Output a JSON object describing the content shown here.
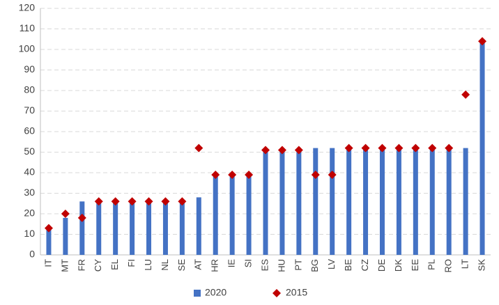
{
  "chart_data": {
    "type": "bar",
    "categories": [
      "IT",
      "MT",
      "FR",
      "CY",
      "EL",
      "FI",
      "LU",
      "NL",
      "SE",
      "AT",
      "HR",
      "IE",
      "SI",
      "ES",
      "HU",
      "PT",
      "BG",
      "LV",
      "BE",
      "CZ",
      "DE",
      "DK",
      "EE",
      "PL",
      "RO",
      "LT",
      "SK"
    ],
    "series": [
      {
        "name": "2020",
        "kind": "bar",
        "color": "#4472C4",
        "values": [
          13,
          18,
          26,
          26,
          26,
          26,
          26,
          26,
          26,
          28,
          39,
          39,
          39,
          51,
          51,
          51,
          52,
          52,
          52,
          52,
          52,
          52,
          52,
          52,
          52,
          52,
          104
        ]
      },
      {
        "name": "2015",
        "kind": "marker",
        "marker": "diamond",
        "color": "#C00000",
        "values": [
          13,
          20,
          18,
          26,
          26,
          26,
          26,
          26,
          26,
          52,
          39,
          39,
          39,
          51,
          51,
          51,
          39,
          39,
          52,
          52,
          52,
          52,
          52,
          52,
          52,
          78,
          104
        ]
      }
    ],
    "ylim": [
      0,
      120
    ],
    "yticks": [
      0,
      10,
      20,
      30,
      40,
      50,
      60,
      70,
      80,
      90,
      100,
      110,
      120
    ],
    "grid": true,
    "legend_position": "bottom"
  }
}
